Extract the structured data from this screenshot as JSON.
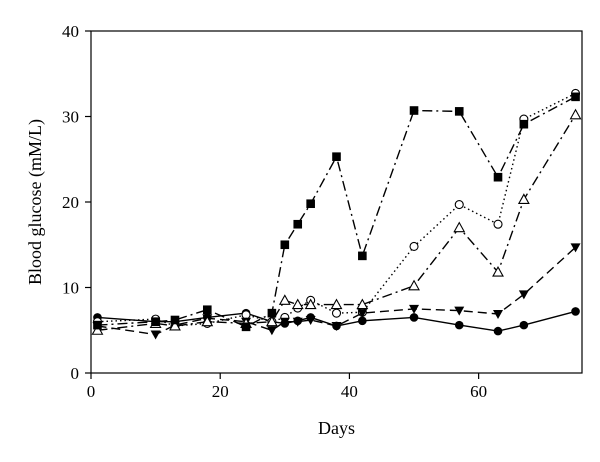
{
  "chart_data": {
    "type": "line",
    "title": "",
    "xlabel": "Days",
    "ylabel": "Blood glucose (mM/L)",
    "xlim": [
      0,
      76
    ],
    "ylim": [
      0,
      40
    ],
    "xticks": [
      0,
      20,
      40,
      60
    ],
    "yticks": [
      0,
      10,
      20,
      30,
      40
    ],
    "grid": false,
    "legend": "none",
    "series": [
      {
        "marker": "filled-circle",
        "line": "solid",
        "color": "#000000",
        "x": [
          1,
          10,
          13,
          18,
          24,
          28,
          30,
          32,
          34,
          38,
          42,
          50,
          57,
          63,
          67,
          75
        ],
        "y": [
          6.5,
          6.0,
          6.0,
          6.5,
          7.0,
          6.0,
          5.8,
          6.1,
          6.5,
          5.5,
          6.1,
          6.5,
          5.6,
          4.9,
          5.6,
          7.2
        ]
      },
      {
        "marker": "open-circle",
        "line": "dotted",
        "color": "#000000",
        "x": [
          1,
          10,
          13,
          18,
          24,
          28,
          30,
          32,
          34,
          38,
          42,
          50,
          57,
          63,
          67,
          75
        ],
        "y": [
          6.0,
          6.3,
          5.5,
          5.8,
          6.8,
          6.0,
          6.5,
          7.6,
          8.5,
          7.0,
          7.1,
          14.8,
          19.7,
          17.4,
          29.7,
          32.7
        ]
      },
      {
        "marker": "filled-triangle-down",
        "line": "dashed",
        "color": "#000000",
        "x": [
          1,
          10,
          13,
          18,
          24,
          28,
          30,
          32,
          34,
          38,
          42,
          50,
          57,
          63,
          67,
          75
        ],
        "y": [
          5.5,
          4.5,
          5.6,
          6.4,
          6.0,
          5.0,
          6.0,
          6.0,
          6.2,
          5.5,
          7.0,
          7.5,
          7.3,
          6.9,
          9.2,
          14.7
        ]
      },
      {
        "marker": "open-triangle-up",
        "line": "dash-dot",
        "color": "#000000",
        "x": [
          1,
          10,
          13,
          18,
          24,
          28,
          30,
          32,
          34,
          38,
          42,
          50,
          57,
          63,
          67,
          75
        ],
        "y": [
          5.0,
          5.8,
          5.5,
          6.0,
          5.8,
          6.0,
          8.5,
          8.0,
          8.0,
          8.0,
          8.0,
          10.2,
          17.0,
          11.8,
          20.3,
          30.2
        ]
      },
      {
        "marker": "filled-square",
        "line": "dash-dot",
        "color": "#000000",
        "x": [
          1,
          10,
          13,
          18,
          24,
          28,
          30,
          32,
          34,
          38,
          42,
          50,
          57,
          63,
          67,
          75
        ],
        "y": [
          5.6,
          6.0,
          6.2,
          7.4,
          5.4,
          7.0,
          15.0,
          17.4,
          19.8,
          25.3,
          13.7,
          30.7,
          30.6,
          22.9,
          29.1,
          32.3
        ]
      }
    ]
  }
}
